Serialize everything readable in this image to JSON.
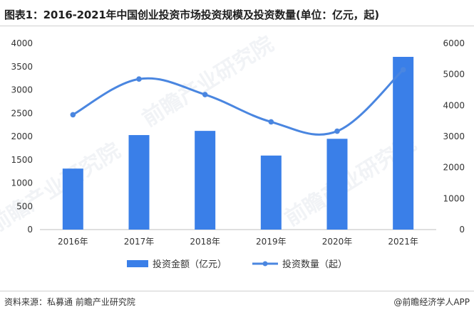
{
  "title": "图表1：2016-2021年中国创业投资市场投资规模及投资数量(单位：亿元，起)",
  "footer": {
    "source": "资料来源：私募通 前瞻产业研究院",
    "brand": "@前瞻经济学人APP"
  },
  "watermark": "前瞻产业研究院",
  "colors": {
    "bar": "#3a7fe8",
    "line": "#4a86e0"
  },
  "chart_data": {
    "type": "bar",
    "categories": [
      "2016年",
      "2017年",
      "2018年",
      "2019年",
      "2020年",
      "2021年"
    ],
    "series": [
      {
        "name": "投资金额（亿元）",
        "type": "bar",
        "axis": "left",
        "values": [
          1310,
          2030,
          2120,
          1590,
          1950,
          3710
        ]
      },
      {
        "name": "投资数量（起）",
        "type": "line",
        "axis": "right",
        "values": [
          3700,
          4850,
          4350,
          3470,
          3170,
          5150
        ]
      }
    ],
    "y_left": {
      "ylim": [
        0,
        4000
      ],
      "ticks": [
        0,
        500,
        1000,
        1500,
        2000,
        2500,
        3000,
        3500,
        4000
      ]
    },
    "y_right": {
      "ylim": [
        0,
        6000
      ],
      "ticks": [
        0,
        1000,
        2000,
        3000,
        4000,
        5000,
        6000
      ]
    },
    "grid": false,
    "legend": "bottom"
  }
}
